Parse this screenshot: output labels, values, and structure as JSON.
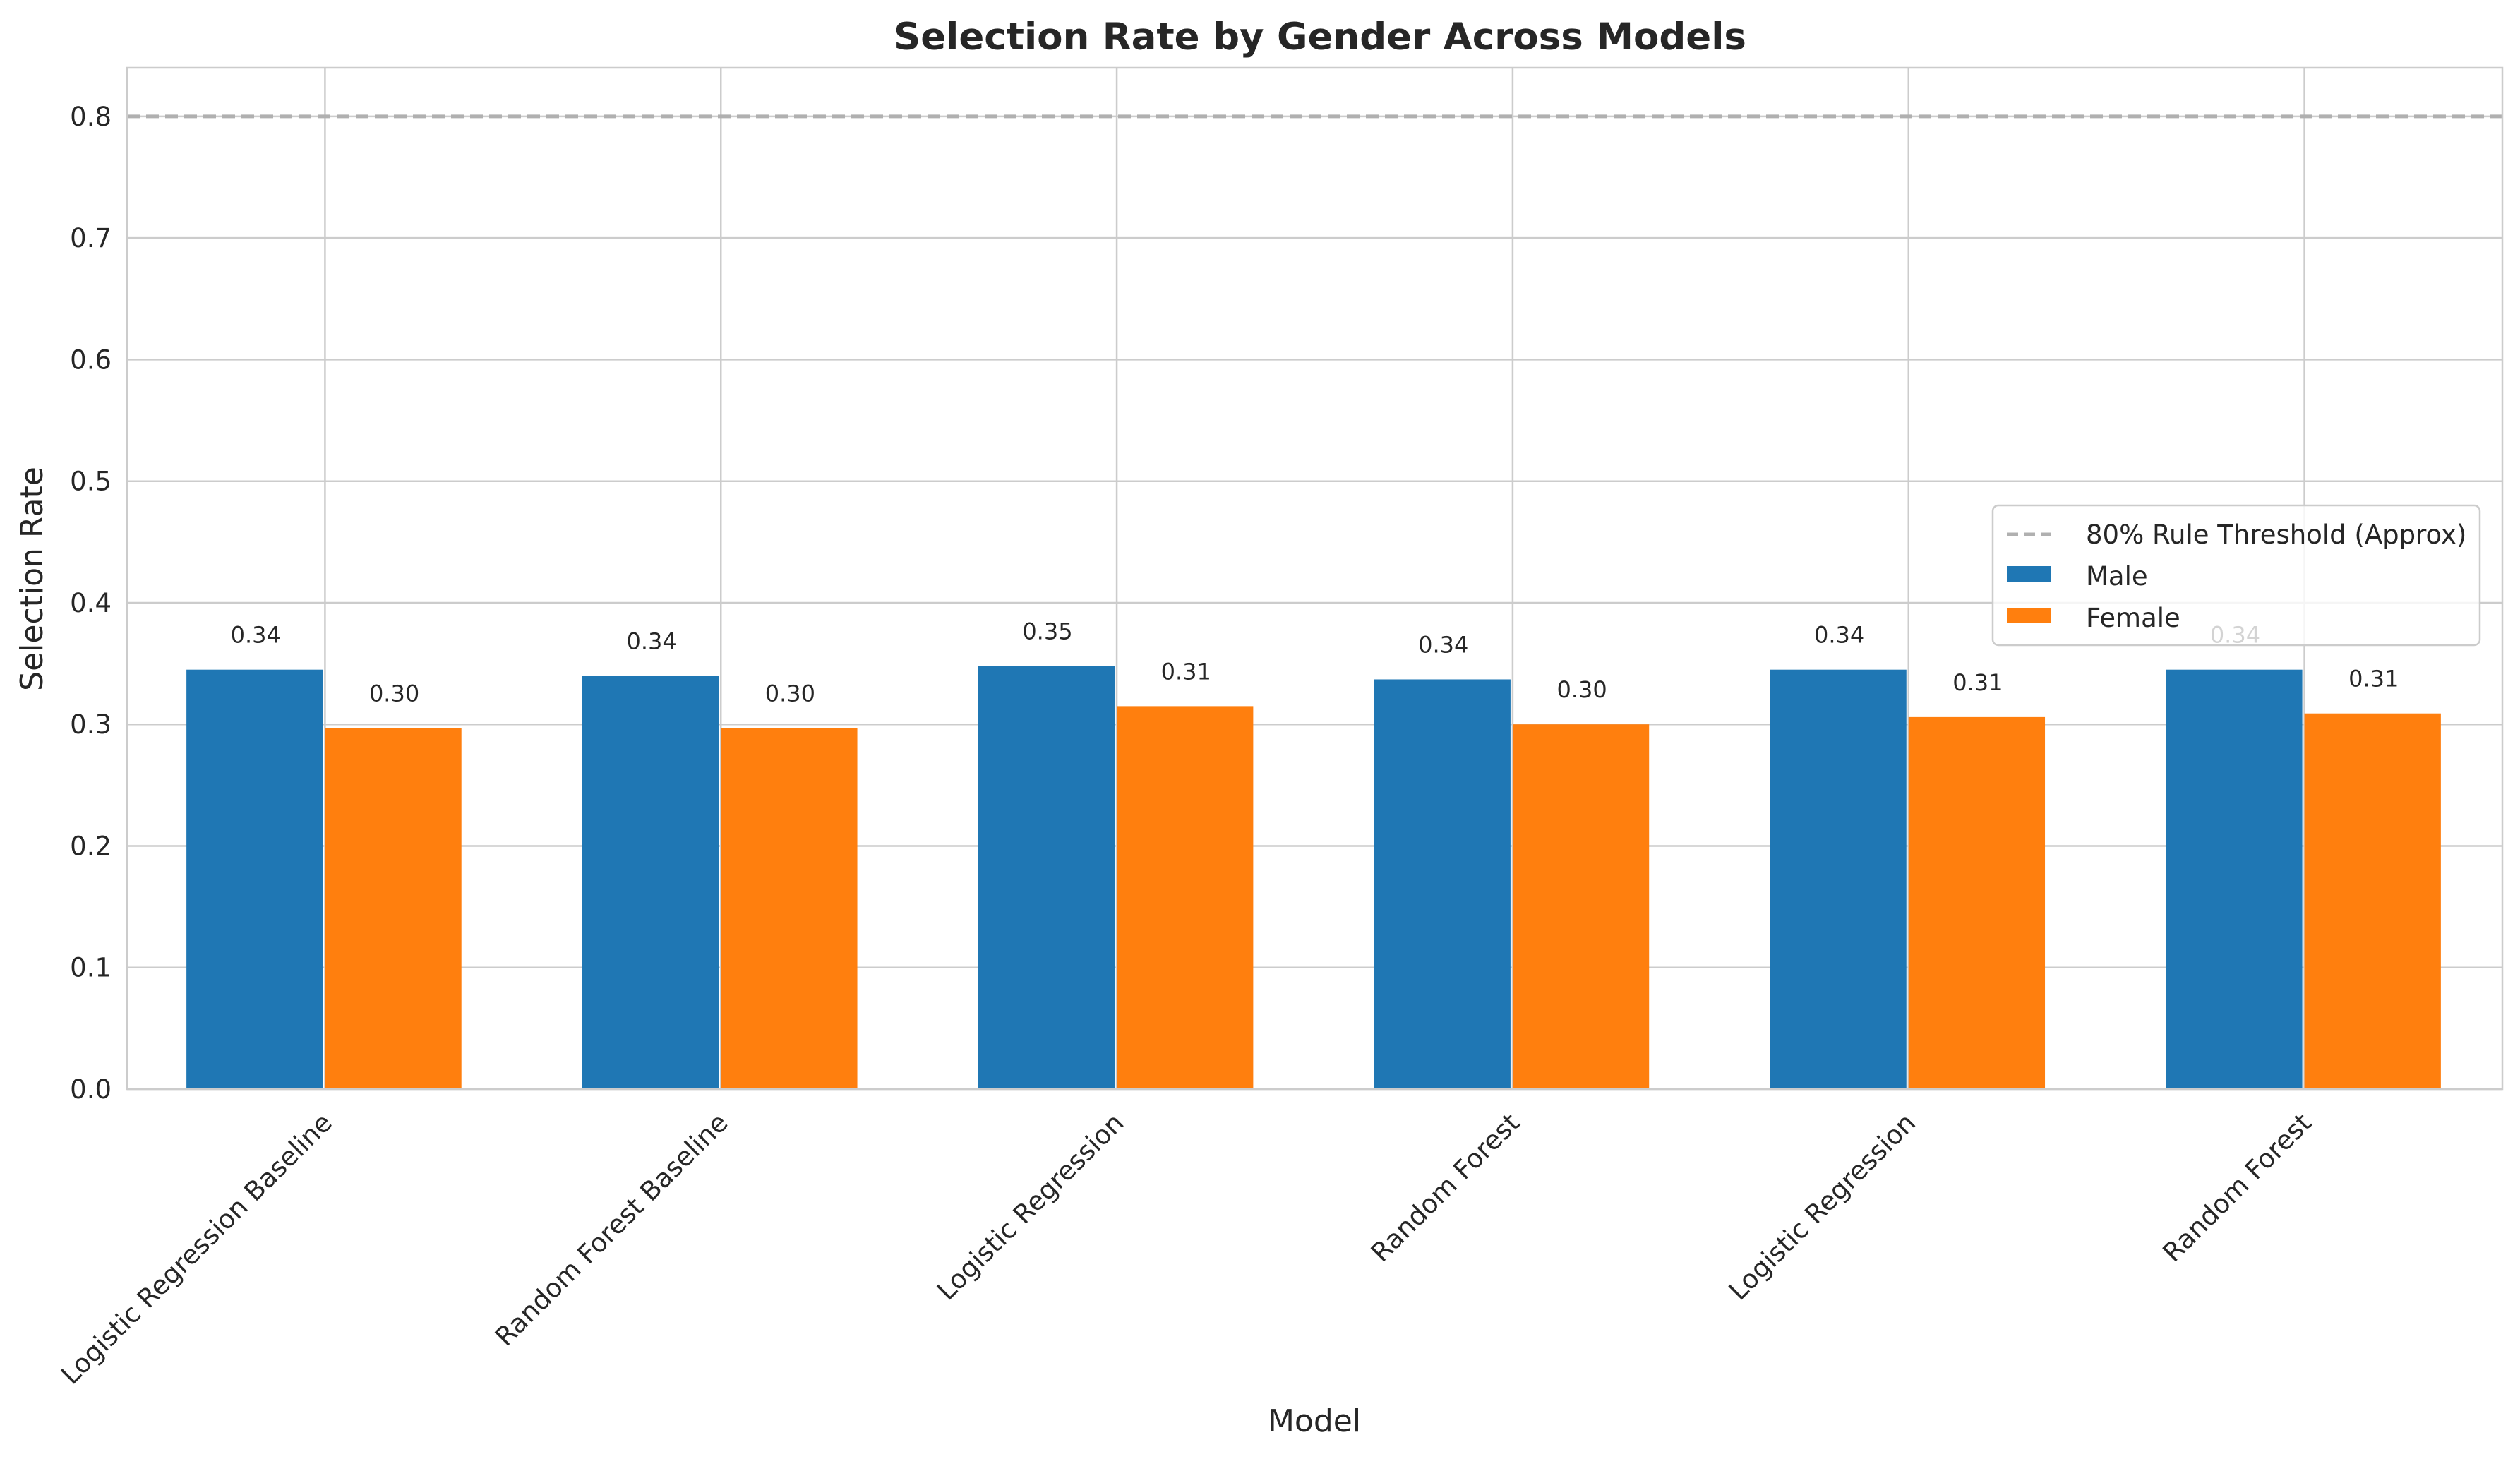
{
  "chart_data": {
    "type": "bar",
    "title": "Selection Rate by Gender Across Models",
    "xlabel": "Model",
    "ylabel": "Selection Rate",
    "categories": [
      "Logistic Regression Baseline",
      "Random Forest Baseline",
      "Logistic Regression",
      "Random Forest",
      "Logistic Regression",
      "Random Forest"
    ],
    "series": [
      {
        "name": "Male",
        "color": "#1f77b4",
        "values": [
          0.345,
          0.34,
          0.348,
          0.337,
          0.345,
          0.345
        ],
        "labels": [
          "0.34",
          "0.34",
          "0.35",
          "0.34",
          "0.34",
          "0.34"
        ]
      },
      {
        "name": "Female",
        "color": "#ff7f0e",
        "values": [
          0.297,
          0.297,
          0.315,
          0.3,
          0.306,
          0.309
        ],
        "labels": [
          "0.30",
          "0.30",
          "0.31",
          "0.30",
          "0.31",
          "0.31"
        ]
      }
    ],
    "reference_line": {
      "name": "80% Rule Threshold (Approx)",
      "value": 0.8,
      "style": "dashed",
      "color": "#b0b0b0"
    },
    "ylim": [
      0,
      0.84
    ],
    "yticks": [
      "0.0",
      "0.1",
      "0.2",
      "0.3",
      "0.4",
      "0.5",
      "0.6",
      "0.7",
      "0.8"
    ],
    "grid": true,
    "legend_position": "center-right"
  }
}
